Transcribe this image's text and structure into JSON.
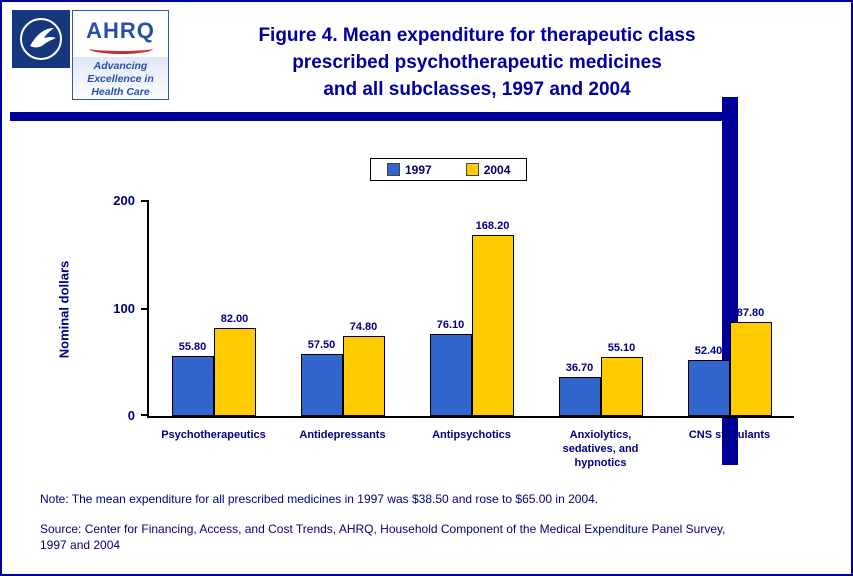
{
  "page": {
    "border_color": "#000099",
    "background": "#FFFFFF",
    "accent_navy": "#000099",
    "text_navy": "#000080"
  },
  "header": {
    "hhs_logo_name": "hhs-eagle-logo",
    "ahrq_logo": {
      "acronym": "AHRQ",
      "tagline": "Advancing Excellence in Health Care"
    },
    "title_lines": [
      "Figure 4. Mean expenditure for therapeutic class",
      "prescribed psychotherapeutic medicines",
      "and all subclasses, 1997 and 2004"
    ],
    "title_color": "#0000A0"
  },
  "chart_data": {
    "type": "bar",
    "title": "Figure 4. Mean expenditure for therapeutic class prescribed psychotherapeutic medicines and all subclasses, 1997 and 2004",
    "xlabel": "",
    "ylabel": "Nominal dollars",
    "ylim": [
      0,
      200
    ],
    "yticks": [
      0,
      100,
      200
    ],
    "grid": false,
    "legend_position": "top-center",
    "categories": [
      "Psychotherapeutics",
      "Antidepressants",
      "Antipsychotics",
      "Anxiolytics, sedatives, and hypnotics",
      "CNS stimulants"
    ],
    "categories_display": [
      "Psychotherapeutics",
      "Antidepressants",
      "Antipsychotics",
      "Anxiolytics,\nsedatives, and\nhypnotics",
      "CNS stimulants"
    ],
    "series": [
      {
        "name": "1997",
        "color": "#3366CC",
        "values": [
          55.8,
          57.5,
          76.1,
          36.7,
          52.4
        ],
        "labels": [
          "55.80",
          "57.50",
          "76.10",
          "36.70",
          "52.40"
        ]
      },
      {
        "name": "2004",
        "color": "#FFCC00",
        "values": [
          82.0,
          74.8,
          168.2,
          55.1,
          87.8
        ],
        "labels": [
          "82.00",
          "74.80",
          "168.20",
          "55.10",
          "87.80"
        ]
      }
    ]
  },
  "footer": {
    "note": "Note: The mean expenditure for all prescribed medicines in 1997 was $38.50 and rose to $65.00 in 2004.",
    "source_lines": [
      "Source: Center for Financing, Access, and Cost Trends, AHRQ, Household Component of the Medical Expenditure Panel Survey,",
      "1997 and 2004"
    ]
  }
}
